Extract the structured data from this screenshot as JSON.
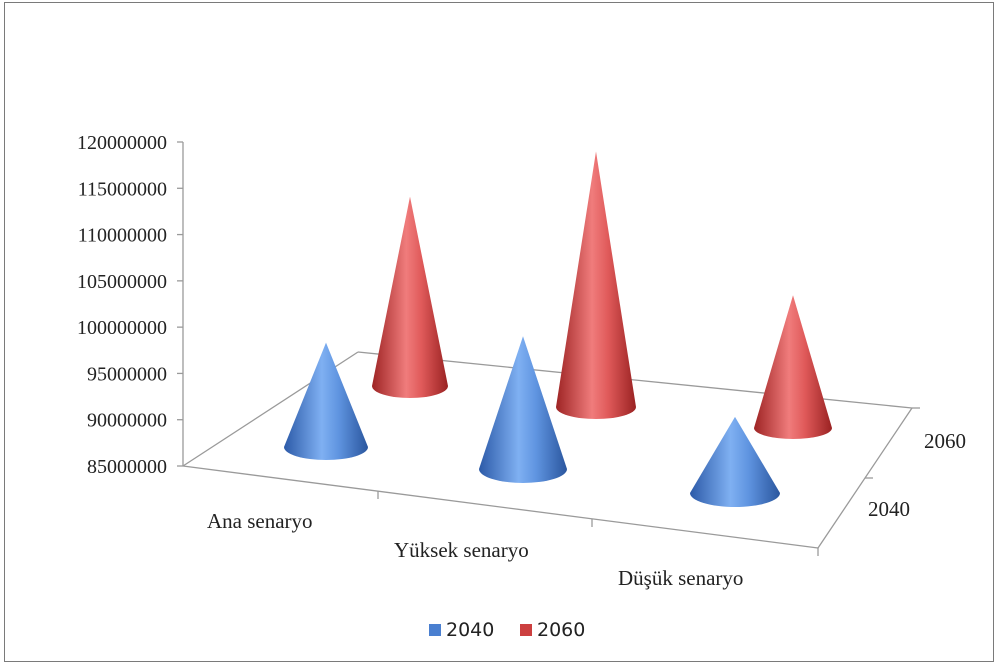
{
  "chart_data": {
    "type": "bar",
    "subtype": "3d-cone",
    "categories": [
      "Ana senaryo",
      "Yüksek senaryo",
      "Düşük senaryo"
    ],
    "depth_categories": [
      "2040",
      "2060"
    ],
    "series": [
      {
        "name": "2040",
        "values": [
          95000000,
          98000000,
          92000000
        ],
        "color": "#4a7fd0"
      },
      {
        "name": "2060",
        "values": [
          104000000,
          111000000,
          98000000
        ],
        "color": "#cc3f3f"
      }
    ],
    "yticks": [
      "85000000",
      "90000000",
      "95000000",
      "100000000",
      "105000000",
      "110000000",
      "115000000",
      "120000000"
    ],
    "ylim": [
      85000000,
      120000000
    ],
    "legend": {
      "placement": "bottom",
      "labels": [
        "2040",
        "2060"
      ]
    },
    "grid": false
  }
}
